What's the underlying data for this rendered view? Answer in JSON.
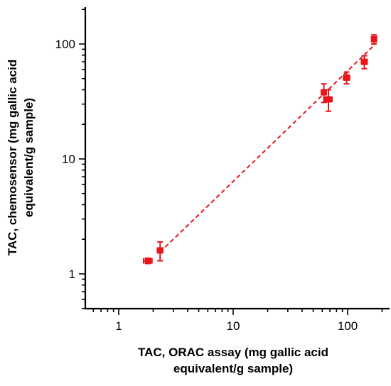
{
  "chart_data": {
    "type": "scatter",
    "xlabel_lines": [
      "TAC, ORAC assay (mg gallic acid",
      "equivalent/g sample)"
    ],
    "ylabel_lines": [
      "TAC, chemosensor (mg gallic acid",
      "equivalent/g sample)"
    ],
    "xscale": "log",
    "yscale": "log",
    "xlim": [
      0.5,
      200
    ],
    "ylim": [
      0.5,
      200
    ],
    "x_ticks": [
      1,
      10,
      100
    ],
    "x_tick_labels": [
      "1",
      "10",
      "100"
    ],
    "y_ticks": [
      1,
      10,
      100
    ],
    "y_tick_labels": [
      "1",
      "10",
      "100"
    ],
    "grid": false,
    "color": "#e8151b",
    "points": [
      {
        "x": 1.8,
        "y": 1.3,
        "xerr": 0.15,
        "yerr": 0.07
      },
      {
        "x": 2.3,
        "y": 1.6,
        "xerr": 0.12,
        "yerr": 0.3
      },
      {
        "x": 62,
        "y": 38,
        "xerr": 3,
        "yerr": 7
      },
      {
        "x": 68,
        "y": 33,
        "xerr": 5,
        "yerr": 7
      },
      {
        "x": 98,
        "y": 51,
        "xerr": 6,
        "yerr": 6
      },
      {
        "x": 140,
        "y": 70,
        "xerr": 8,
        "yerr": 9
      },
      {
        "x": 170,
        "y": 110,
        "xerr": 6,
        "yerr": 10
      }
    ],
    "fit_line": {
      "x": [
        2.3,
        175
      ],
      "y": [
        1.55,
        100
      ]
    }
  }
}
